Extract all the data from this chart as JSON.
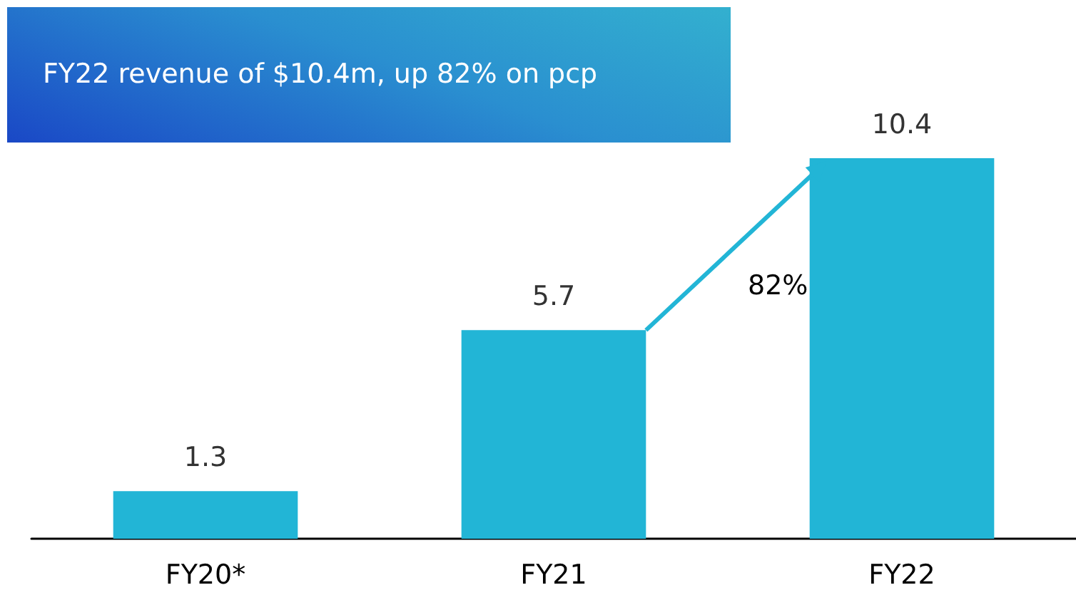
{
  "chart_data": {
    "type": "bar",
    "title": "FY22 revenue of $10.4m, up 82% on pcp",
    "categories": [
      "FY20*",
      "FY21",
      "FY22"
    ],
    "values": [
      1.3,
      5.7,
      10.4
    ],
    "color": "#22b5d6",
    "data_labels": true,
    "annotations": [
      "82%"
    ]
  }
}
